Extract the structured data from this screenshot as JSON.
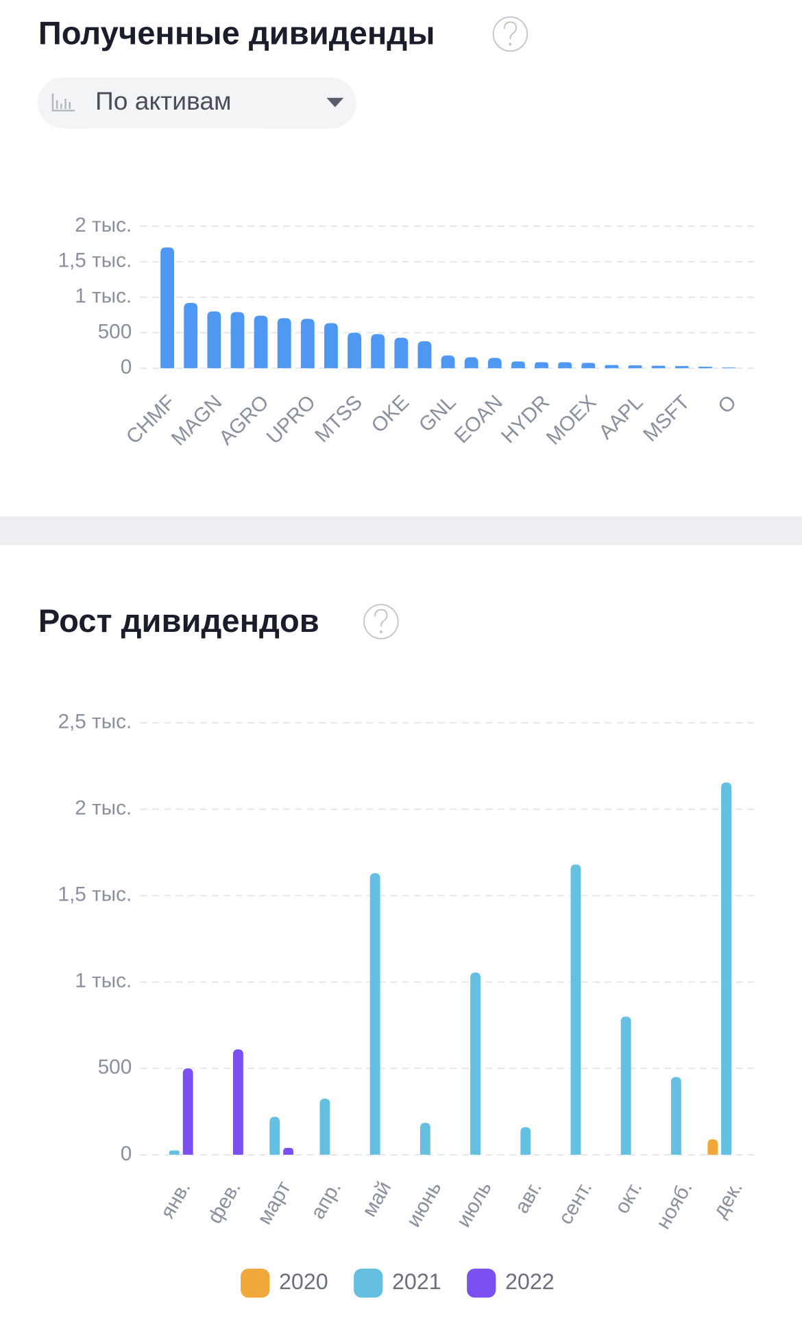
{
  "filter": {
    "label": "По активам"
  },
  "chart_data": [
    {
      "type": "bar",
      "title": "Полученные дивиденды",
      "categories": [
        "CHMF",
        null,
        "MAGN",
        null,
        "AGRO",
        null,
        "UPRO",
        null,
        "MTSS",
        null,
        "OKE",
        null,
        "GNL",
        null,
        "EOAN",
        null,
        "HYDR",
        null,
        "MOEX",
        null,
        "AAPL",
        null,
        "MSFT",
        null,
        "O"
      ],
      "values": [
        1700,
        920,
        800,
        790,
        740,
        705,
        695,
        635,
        500,
        480,
        430,
        380,
        180,
        155,
        145,
        95,
        85,
        85,
        75,
        45,
        40,
        35,
        30,
        20,
        10
      ],
      "color": "#4e97f2",
      "ylim": [
        0,
        2000
      ],
      "yticks": [
        0,
        500,
        {
          "value": 1000,
          "label": "1 тыс."
        },
        {
          "value": 1500,
          "label": "1,5 тыс."
        },
        {
          "value": 2000,
          "label": "2 тыс."
        }
      ],
      "grid": true
    },
    {
      "type": "bar",
      "title": "Рост дивидендов",
      "categories": [
        "янв.",
        "фев.",
        "март",
        "апр.",
        "май",
        "июнь",
        "июль",
        "авг.",
        "сент.",
        "окт.",
        "нояб.",
        "дек."
      ],
      "series": [
        {
          "name": "2020",
          "color": "#f0a83a",
          "values": [
            null,
            null,
            null,
            null,
            null,
            null,
            null,
            null,
            null,
            null,
            null,
            90
          ]
        },
        {
          "name": "2021",
          "color": "#64bfe0",
          "values": [
            25,
            null,
            220,
            325,
            1630,
            185,
            1055,
            160,
            1680,
            800,
            450,
            2155
          ]
        },
        {
          "name": "2022",
          "color": "#7b4ff0",
          "values": [
            500,
            610,
            40,
            null,
            null,
            null,
            null,
            null,
            null,
            null,
            null,
            null
          ]
        }
      ],
      "ylim": [
        0,
        2500
      ],
      "yticks": [
        0,
        500,
        {
          "value": 1000,
          "label": "1 тыс."
        },
        {
          "value": 1500,
          "label": "1,5 тыс."
        },
        {
          "value": 2000,
          "label": "2 тыс."
        },
        {
          "value": 2500,
          "label": "2,5 тыс."
        }
      ],
      "grid": true,
      "legend": "bottom"
    }
  ]
}
